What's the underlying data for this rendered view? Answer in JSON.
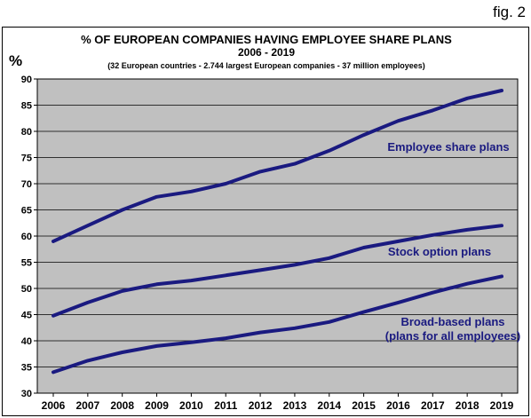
{
  "figure_label": "fig. 2",
  "chart_data": {
    "type": "line",
    "title": "% OF EUROPEAN COMPANIES HAVING EMPLOYEE SHARE PLANS",
    "subtitle": "2006 - 2019",
    "note": "(32 European countries - 2.744 largest European companies - 37 million employees)",
    "ylabel": "%",
    "xlabel": "",
    "x": [
      "2006",
      "2007",
      "2008",
      "2009",
      "2010",
      "2011",
      "2012",
      "2013",
      "2014",
      "2015",
      "2016",
      "2017",
      "2018",
      "2019"
    ],
    "ylim": [
      30,
      90
    ],
    "yticks": [
      30,
      35,
      40,
      45,
      50,
      55,
      60,
      65,
      70,
      75,
      80,
      85,
      90
    ],
    "grid": true,
    "series": [
      {
        "name": "Employee share plans",
        "values": [
          59.0,
          62.0,
          65.0,
          67.5,
          68.5,
          70.0,
          72.3,
          73.8,
          76.3,
          79.3,
          82.0,
          84.0,
          86.3,
          87.8
        ]
      },
      {
        "name": "Stock option plans",
        "values": [
          44.8,
          47.3,
          49.5,
          50.8,
          51.5,
          52.5,
          53.5,
          54.5,
          55.8,
          57.8,
          59.0,
          60.2,
          61.2,
          62.0
        ]
      },
      {
        "name": "Broad-based plans\n(plans for all employees)",
        "values": [
          34.0,
          36.2,
          37.8,
          39.0,
          39.7,
          40.5,
          41.6,
          42.4,
          43.6,
          45.5,
          47.3,
          49.2,
          50.9,
          52.3
        ]
      }
    ],
    "colors": {
      "line": "#1a1a80",
      "plot_bg": "#c0c0c0",
      "grid": "#000000",
      "label": "#1a1a80"
    }
  }
}
